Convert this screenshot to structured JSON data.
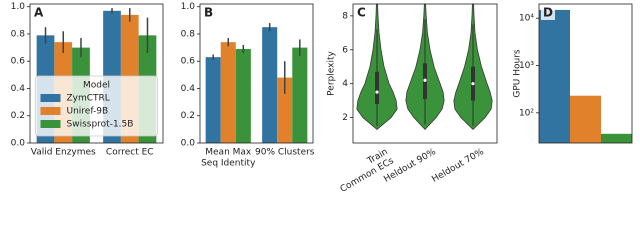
{
  "chart_data": [
    {
      "type": "bar",
      "panel_label": "A",
      "categories": [
        [
          "Valid Enzymes"
        ],
        [
          "Correct EC"
        ]
      ],
      "series": [
        {
          "name": "ZymCTRL",
          "color": "#3274a1",
          "values": [
            0.79,
            0.97
          ],
          "errors": [
            0.06,
            0.02
          ]
        },
        {
          "name": "Uniref-9B",
          "color": "#e1812c",
          "values": [
            0.74,
            0.94
          ],
          "errors": [
            0.08,
            0.05
          ]
        },
        {
          "name": "Swissprot-1.5B",
          "color": "#3a923a",
          "values": [
            0.7,
            0.79
          ],
          "errors": [
            0.07,
            0.13
          ]
        }
      ],
      "ylim": [
        0,
        1.02
      ],
      "yticks": [
        {
          "value": 0,
          "label": "0.0"
        },
        {
          "value": 0.2,
          "label": "0.2"
        },
        {
          "value": 0.4,
          "label": "0.4"
        },
        {
          "value": 0.6,
          "label": "0.6"
        },
        {
          "value": 0.8,
          "label": "0.8"
        },
        {
          "value": 1,
          "label": "1.0"
        }
      ],
      "legend": {
        "title": "Model",
        "loc": "lower center"
      }
    },
    {
      "type": "bar",
      "panel_label": "B",
      "categories": [
        [
          "Mean Max",
          "Seq Identity"
        ],
        [
          "90% Clusters"
        ]
      ],
      "series": [
        {
          "color": "#3274a1",
          "values": [
            0.63,
            0.85
          ],
          "errors": [
            0.02,
            0.03
          ]
        },
        {
          "color": "#e1812c",
          "values": [
            0.74,
            0.48
          ],
          "errors": [
            0.03,
            0.12
          ]
        },
        {
          "color": "#3a923a",
          "values": [
            0.69,
            0.7
          ],
          "errors": [
            0.03,
            0.06
          ]
        }
      ],
      "ylim": [
        0,
        1.02
      ],
      "yticks": [
        {
          "value": 0,
          "label": "0.0"
        },
        {
          "value": 0.2,
          "label": "0.2"
        },
        {
          "value": 0.4,
          "label": "0.4"
        },
        {
          "value": 0.6,
          "label": "0.6"
        },
        {
          "value": 0.8,
          "label": "0.8"
        },
        {
          "value": 1,
          "label": "1.0"
        }
      ]
    },
    {
      "type": "violin",
      "panel_label": "C",
      "y_label": "Perplexity",
      "color": "#3a923a",
      "categories": [
        [
          "Train",
          "Common ECs"
        ],
        [
          "Heldout 90%"
        ],
        [
          "Heldout 70%"
        ]
      ],
      "density_y": [
        1.3,
        2,
        2.5,
        3,
        3.5,
        4,
        5,
        6,
        7,
        8,
        8.7
      ],
      "violins": [
        {
          "density": [
            0,
            0.7,
            1,
            0.95,
            0.8,
            0.6,
            0.35,
            0.2,
            0.1,
            0.05,
            0.03
          ],
          "q1": 2.8,
          "median": 3.5,
          "q3": 4.7,
          "min": 1.5,
          "max": 7.2
        },
        {
          "density": [
            0,
            0.55,
            0.85,
            0.95,
            0.9,
            0.75,
            0.45,
            0.25,
            0.12,
            0.06,
            0.03
          ],
          "q1": 3.1,
          "median": 4.2,
          "q3": 5.2,
          "min": 1.6,
          "max": 7.8
        },
        {
          "density": [
            0,
            0.6,
            0.9,
            0.95,
            0.85,
            0.7,
            0.42,
            0.22,
            0.1,
            0.05,
            0.03
          ],
          "q1": 3.0,
          "median": 4.0,
          "q3": 5.0,
          "min": 1.5,
          "max": 7.5
        }
      ],
      "ylim": [
        0.5,
        8.7
      ],
      "yticks": [
        2,
        4,
        6,
        8
      ]
    },
    {
      "type": "bar",
      "panel_label": "D",
      "y_label": "GPU Hours",
      "log": true,
      "values": [
        15000,
        230,
        36
      ],
      "colors": [
        "#3274a1",
        "#e1812c",
        "#3a923a"
      ],
      "ylim": [
        23,
        20000
      ],
      "yticks": [
        {
          "value": 100,
          "label": "10²"
        },
        {
          "value": 1000,
          "label": "10³"
        },
        {
          "value": 10000,
          "label": "10⁴"
        }
      ]
    }
  ]
}
